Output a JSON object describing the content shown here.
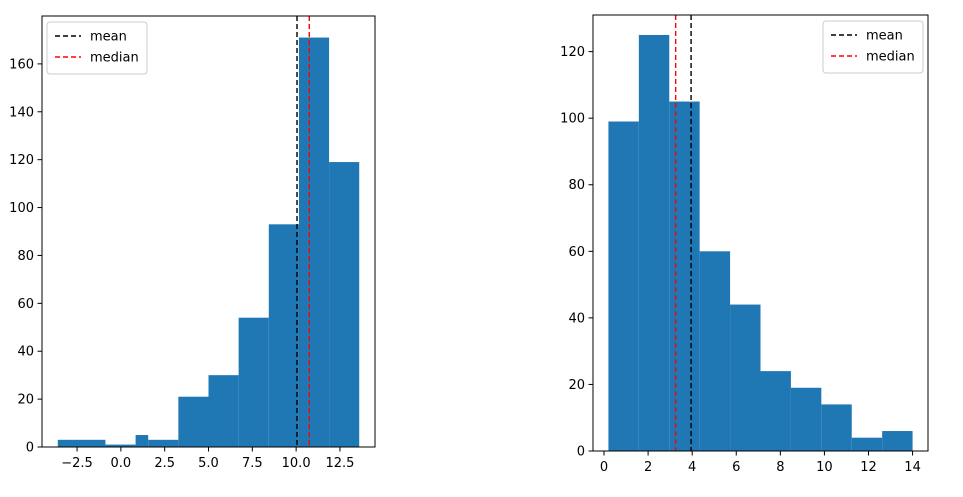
{
  "chart_data": [
    {
      "type": "bar",
      "subtype": "histogram",
      "bin_edges": [
        -3.6,
        -0.88,
        0.84,
        1.56,
        3.28,
        5.0,
        6.72,
        8.44,
        10.16,
        11.88,
        13.6
      ],
      "bin_edges_note": "",
      "counts": [
        3,
        1,
        5,
        3,
        21,
        30,
        54,
        93,
        171,
        119
      ],
      "xlim": [
        -4.5,
        14.5
      ],
      "ylim": [
        0,
        180
      ],
      "xticks": [
        -2.5,
        0.0,
        2.5,
        5.0,
        7.5,
        10.0,
        12.5
      ],
      "xtick_labels": [
        "−2.5",
        "0.0",
        "2.5",
        "5.0",
        "7.5",
        "10.0",
        "12.5"
      ],
      "yticks": [
        0,
        20,
        40,
        60,
        80,
        100,
        120,
        140,
        160
      ],
      "ytick_labels": [
        "0",
        "20",
        "40",
        "60",
        "80",
        "100",
        "120",
        "140",
        "160"
      ],
      "mean": 10.05,
      "median": 10.75,
      "legend": {
        "placement": "upper-left",
        "entries": [
          {
            "label": "mean",
            "color": "#000000",
            "style": "dashed"
          },
          {
            "label": "median",
            "color": "#ff0000",
            "style": "dashed"
          }
        ]
      },
      "bar_color": "#1f77b4",
      "grid": false
    },
    {
      "type": "bar",
      "subtype": "histogram",
      "bin_edges": [
        0.2,
        1.58,
        2.96,
        4.34,
        5.72,
        7.1,
        8.48,
        9.86,
        11.24,
        12.62,
        14.0
      ],
      "counts": [
        99,
        125,
        105,
        60,
        44,
        24,
        19,
        14,
        4,
        6
      ],
      "xlim": [
        -0.5,
        14.7
      ],
      "ylim": [
        0,
        131
      ],
      "xticks": [
        0,
        2,
        4,
        6,
        8,
        10,
        12,
        14
      ],
      "xtick_labels": [
        "0",
        "2",
        "4",
        "6",
        "8",
        "10",
        "12",
        "14"
      ],
      "yticks": [
        0,
        20,
        40,
        60,
        80,
        100,
        120
      ],
      "ytick_labels": [
        "0",
        "20",
        "40",
        "60",
        "80",
        "100",
        "120"
      ],
      "mean": 3.95,
      "median": 3.25,
      "legend": {
        "placement": "upper-right",
        "entries": [
          {
            "label": "mean",
            "color": "#000000",
            "style": "dashed"
          },
          {
            "label": "median",
            "color": "#ff0000",
            "style": "dashed"
          }
        ]
      },
      "bar_color": "#1f77b4",
      "grid": false
    }
  ]
}
